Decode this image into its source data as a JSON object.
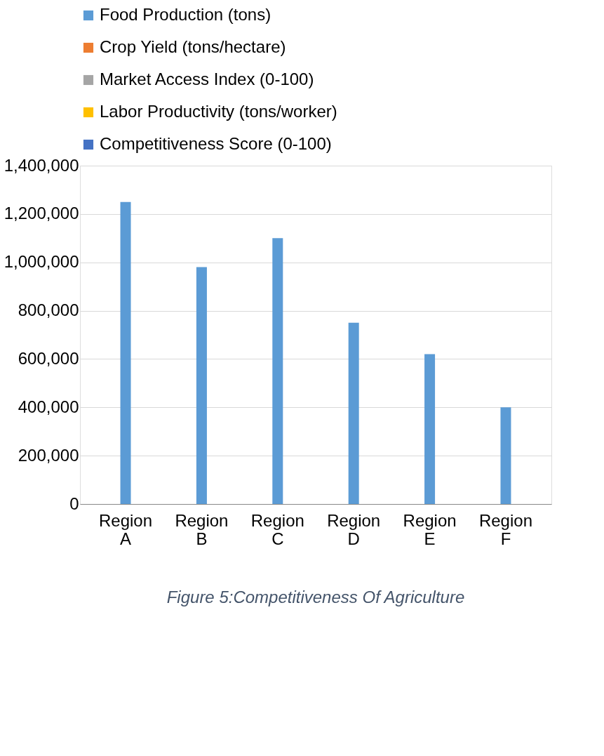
{
  "chart_data": {
    "type": "bar",
    "categories": [
      "Region A",
      "Region B",
      "Region C",
      "Region D",
      "Region E",
      "Region F"
    ],
    "series": [
      {
        "name": "Food Production (tons)",
        "color": "#5b9bd5",
        "values": [
          1250000,
          980000,
          1100000,
          750000,
          620000,
          400000
        ]
      },
      {
        "name": "Crop Yield (tons/hectare)",
        "color": "#ed7d31",
        "values": [
          null,
          null,
          null,
          null,
          null,
          null
        ]
      },
      {
        "name": "Market Access Index (0-100)",
        "color": "#a5a5a5",
        "values": [
          null,
          null,
          null,
          null,
          null,
          null
        ]
      },
      {
        "name": "Labor Productivity (tons/worker)",
        "color": "#ffc000",
        "values": [
          null,
          null,
          null,
          null,
          null,
          null
        ]
      },
      {
        "name": "Competitiveness Score (0-100)",
        "color": "#4472c4",
        "values": [
          null,
          null,
          null,
          null,
          null,
          null
        ]
      }
    ],
    "ylim": [
      0,
      1400000
    ],
    "yticks": [
      0,
      {
        "value": 200000,
        "label": "200,000"
      },
      {
        "value": 400000,
        "label": "400,000"
      },
      {
        "value": 600000,
        "label": "600,000"
      },
      {
        "value": 800000,
        "label": "800,000"
      },
      {
        "value": 1000000,
        "label": "1,000,000"
      },
      {
        "value": 1200000,
        "label": "1,200,000"
      },
      {
        "value": 1400000,
        "label": "1,400,000"
      }
    ],
    "grid": "y",
    "legend": "top",
    "annotations": [
      "Figure 5:Competitiveness Of Agriculture"
    ]
  }
}
